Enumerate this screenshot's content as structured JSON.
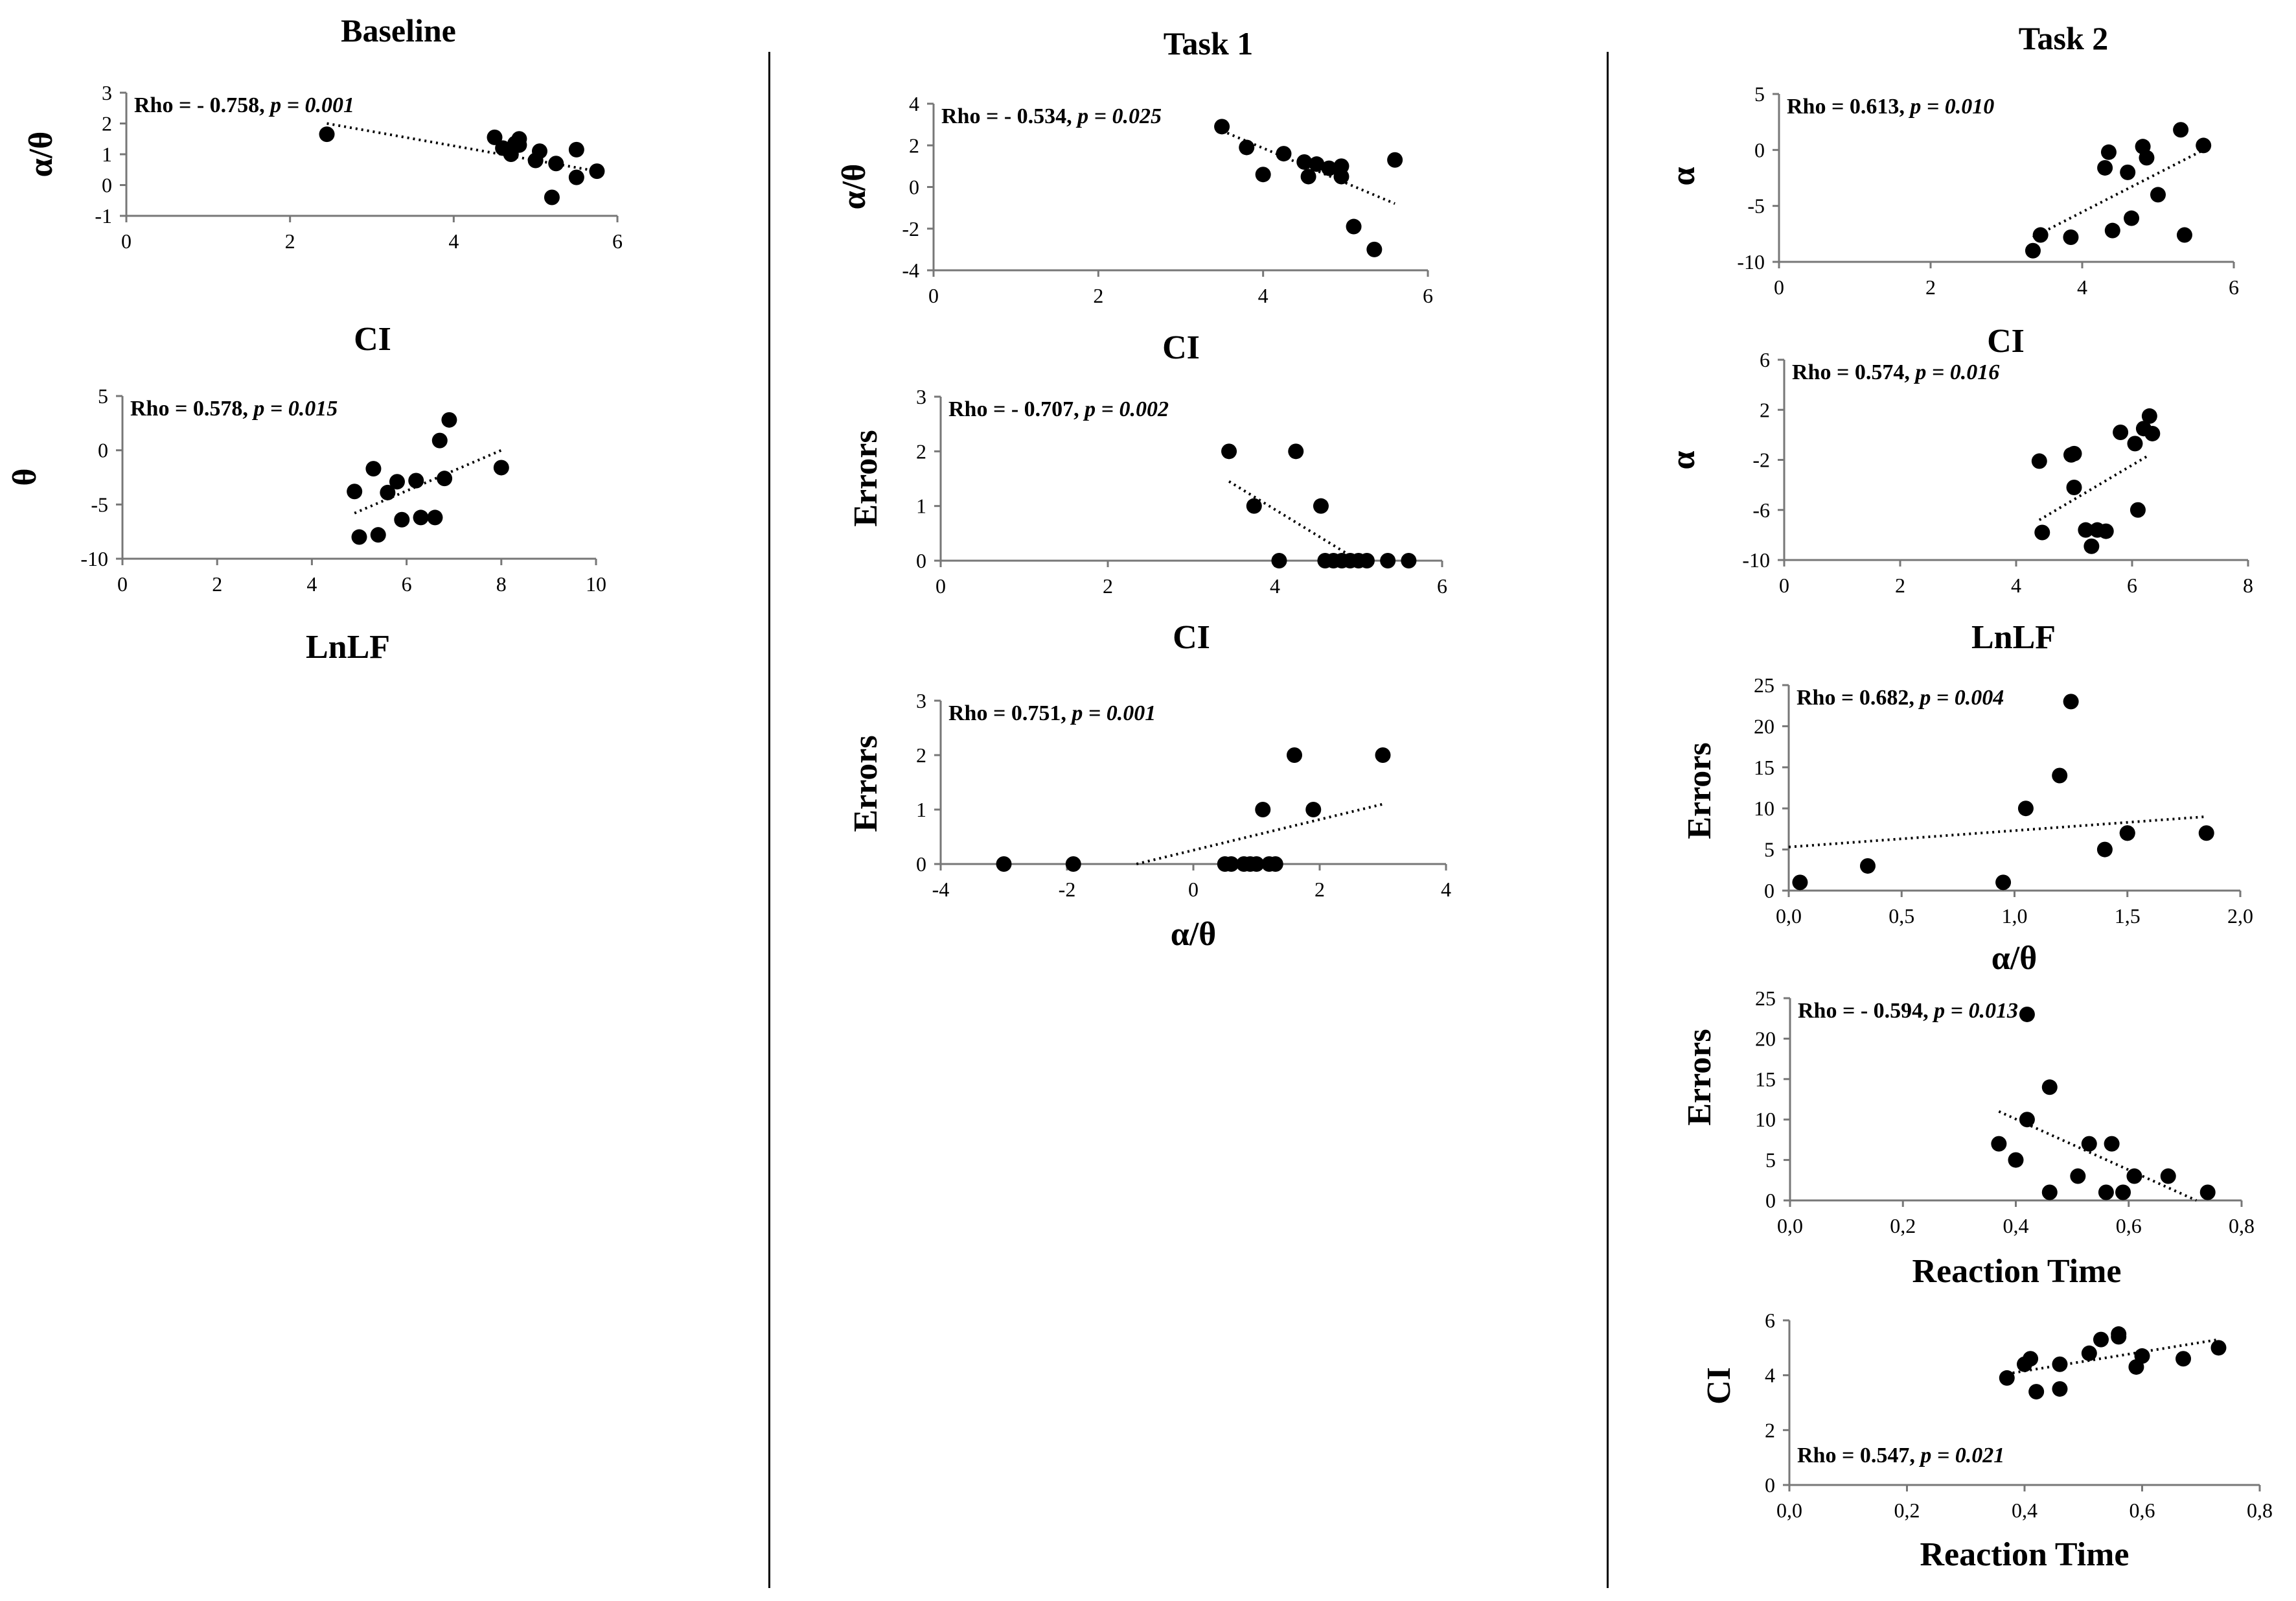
{
  "columns": [
    {
      "title": "Baseline"
    },
    {
      "title": "Task 1"
    },
    {
      "title": "Task 2"
    }
  ],
  "chart_data": [
    {
      "type": "scatter",
      "column": "Baseline",
      "ylabel": "α/θ",
      "xlabel": "CI",
      "annotation": {
        "rho": "Rho = - 0.758,",
        "p": "p = 0.001"
      },
      "xlim": [
        0,
        6
      ],
      "xticks": [
        0,
        2,
        4,
        6
      ],
      "ylim": [
        -1,
        3
      ],
      "yticks": [
        -1,
        0,
        1,
        2,
        3
      ],
      "x": [
        2.45,
        4.5,
        4.6,
        4.7,
        4.75,
        4.8,
        4.8,
        5.0,
        5.05,
        5.2,
        5.25,
        5.5,
        5.5,
        5.75
      ],
      "y": [
        1.65,
        1.55,
        1.2,
        1.0,
        1.35,
        1.5,
        1.3,
        0.8,
        1.1,
        -0.4,
        0.7,
        0.25,
        1.15,
        0.45
      ],
      "trend": [
        [
          2.45,
          2.0
        ],
        [
          5.75,
          0.45
        ]
      ]
    },
    {
      "type": "scatter",
      "column": "Baseline",
      "ylabel": "θ",
      "xlabel": "LnLF",
      "annotation": {
        "rho": "Rho = 0.578,",
        "p": "p = 0.015"
      },
      "xlim": [
        0,
        10
      ],
      "xticks": [
        0,
        2,
        4,
        6,
        8,
        10
      ],
      "ylim": [
        -10,
        5
      ],
      "yticks": [
        -10,
        -5,
        0,
        5
      ],
      "x": [
        4.9,
        5.0,
        5.3,
        5.4,
        5.6,
        5.8,
        5.9,
        6.2,
        6.3,
        6.6,
        6.7,
        6.8,
        6.9,
        8.0
      ],
      "y": [
        -3.8,
        -8.0,
        -1.7,
        -7.8,
        -3.9,
        -2.9,
        -6.4,
        -2.8,
        -6.2,
        -6.2,
        0.9,
        -2.6,
        2.8,
        -1.6
      ],
      "trend": [
        [
          4.9,
          -5.8
        ],
        [
          8.0,
          0.0
        ]
      ]
    },
    {
      "type": "scatter",
      "column": "Task 1",
      "ylabel": "α/θ",
      "xlabel": "CI",
      "annotation": {
        "rho": "Rho = - 0.534,",
        "p": "p = 0.025"
      },
      "xlim": [
        0,
        6
      ],
      "xticks": [
        0,
        2,
        4,
        6
      ],
      "ylim": [
        -4,
        4
      ],
      "yticks": [
        -4,
        -2,
        0,
        2,
        4
      ],
      "x": [
        3.5,
        3.8,
        4.0,
        4.25,
        4.5,
        4.55,
        4.65,
        4.8,
        4.95,
        4.95,
        5.1,
        5.35,
        5.6
      ],
      "y": [
        2.9,
        1.9,
        0.6,
        1.6,
        1.2,
        0.5,
        1.1,
        0.9,
        1.0,
        0.5,
        -1.9,
        -3.0,
        1.3
      ],
      "trend": [
        [
          3.5,
          2.7
        ],
        [
          5.6,
          -0.8
        ]
      ]
    },
    {
      "type": "scatter",
      "column": "Task 1",
      "ylabel": "Errors",
      "xlabel": "CI",
      "annotation": {
        "rho": "Rho = - 0.707,",
        "p": "p = 0.002"
      },
      "xlim": [
        0,
        6
      ],
      "xticks": [
        0,
        2,
        4,
        6
      ],
      "ylim": [
        0,
        3
      ],
      "yticks": [
        0,
        1,
        2,
        3
      ],
      "x": [
        3.45,
        3.75,
        4.05,
        4.25,
        4.55,
        4.6,
        4.7,
        4.8,
        4.9,
        5.0,
        5.1,
        5.35,
        5.6
      ],
      "y": [
        2,
        1,
        0,
        2,
        1,
        0,
        0,
        0,
        0,
        0,
        0,
        0,
        0
      ],
      "trend": [
        [
          3.45,
          1.45
        ],
        [
          5.0,
          0.0
        ]
      ]
    },
    {
      "type": "scatter",
      "column": "Task 1",
      "ylabel": "Errors",
      "xlabel": "α/θ",
      "annotation": {
        "rho": "Rho = 0.751,",
        "p": "p = 0.001"
      },
      "xlim": [
        -4,
        4
      ],
      "xticks": [
        -4,
        -2,
        0,
        2,
        4
      ],
      "ylim": [
        0,
        3
      ],
      "yticks": [
        0,
        1,
        2,
        3
      ],
      "x": [
        -3.0,
        -1.9,
        0.5,
        0.6,
        0.8,
        0.9,
        1.0,
        1.1,
        1.2,
        1.3,
        1.6,
        1.9,
        3.0
      ],
      "y": [
        0,
        0,
        0,
        0,
        0,
        0,
        0,
        1,
        0,
        0,
        2,
        1,
        2
      ],
      "trend": [
        [
          -0.9,
          0.0
        ],
        [
          3.0,
          1.1
        ]
      ]
    },
    {
      "type": "scatter",
      "column": "Task 2",
      "ylabel": "α",
      "xlabel": "CI",
      "annotation": {
        "rho": "Rho = 0.613,",
        "p": "p = 0.010"
      },
      "xlim": [
        0,
        6
      ],
      "xticks": [
        0,
        2,
        4,
        6
      ],
      "ylim": [
        -10,
        5
      ],
      "yticks": [
        -10,
        -5,
        0,
        5
      ],
      "x": [
        3.35,
        3.45,
        3.85,
        4.3,
        4.35,
        4.4,
        4.6,
        4.65,
        4.8,
        4.85,
        5.0,
        5.3,
        5.35,
        5.6
      ],
      "y": [
        -9.0,
        -7.6,
        -7.8,
        -1.6,
        -0.2,
        -7.2,
        -2.0,
        -6.1,
        0.3,
        -0.7,
        -4.0,
        1.8,
        -7.6,
        0.4
      ],
      "trend": [
        [
          3.35,
          -7.8
        ],
        [
          5.6,
          0.0
        ]
      ]
    },
    {
      "type": "scatter",
      "column": "Task 2",
      "ylabel": "α",
      "xlabel": "LnLF",
      "annotation": {
        "rho": "Rho = 0.574,",
        "p": "p = 0.016"
      },
      "xlim": [
        0,
        8
      ],
      "xticks": [
        0,
        2,
        4,
        6,
        8
      ],
      "ylim": [
        -10,
        6
      ],
      "yticks": [
        -10,
        -6,
        -2,
        2,
        6
      ],
      "x": [
        4.4,
        4.45,
        4.95,
        5.0,
        5.0,
        5.2,
        5.3,
        5.4,
        5.55,
        5.8,
        6.05,
        6.1,
        6.2,
        6.3,
        6.35
      ],
      "y": [
        -2.1,
        -7.8,
        -1.6,
        -4.2,
        -1.5,
        -7.6,
        -8.9,
        -7.6,
        -7.7,
        0.2,
        -0.7,
        -6.0,
        0.5,
        1.5,
        0.1
      ],
      "trend": [
        [
          4.4,
          -6.8
        ],
        [
          6.3,
          -1.6
        ]
      ]
    },
    {
      "type": "scatter",
      "column": "Task 2",
      "ylabel": "Errors",
      "xlabel": "α/θ",
      "annotation": {
        "rho": "Rho = 0.682,",
        "p": "p = 0.004"
      },
      "xlim": [
        0,
        2
      ],
      "xticks": [
        "0,0",
        "0,5",
        "1,0",
        "1,5",
        "2,0"
      ],
      "ylim": [
        0,
        25
      ],
      "yticks": [
        0,
        5,
        10,
        15,
        20,
        25
      ],
      "x": [
        0.05,
        0.35,
        0.95,
        1.05,
        1.2,
        1.25,
        1.4,
        1.5,
        1.5,
        1.85
      ],
      "y": [
        1,
        3,
        1,
        10,
        14,
        23,
        5,
        7,
        7,
        7
      ],
      "trend": [
        [
          0.0,
          5.3
        ],
        [
          1.85,
          9.0
        ]
      ]
    },
    {
      "type": "scatter",
      "column": "Task 2",
      "ylabel": "Errors",
      "xlabel": "Reaction Time",
      "annotation": {
        "rho": "Rho = - 0.594,",
        "p": "p = 0.013"
      },
      "xlim": [
        0,
        0.8
      ],
      "xticks": [
        "0,0",
        "0,2",
        "0,4",
        "0,6",
        "0,8"
      ],
      "ylim": [
        0,
        25
      ],
      "yticks": [
        0,
        5,
        10,
        15,
        20,
        25
      ],
      "x": [
        0.37,
        0.4,
        0.42,
        0.42,
        0.46,
        0.46,
        0.51,
        0.53,
        0.56,
        0.57,
        0.59,
        0.61,
        0.67,
        0.74
      ],
      "y": [
        7,
        5,
        10,
        23,
        14,
        1,
        3,
        7,
        1,
        7,
        1,
        3,
        3,
        1
      ],
      "trend": [
        [
          0.37,
          11.0
        ],
        [
          0.72,
          0.0
        ]
      ]
    },
    {
      "type": "scatter",
      "column": "Task 2",
      "ylabel": "CI",
      "xlabel": "Reaction Time",
      "annotation": {
        "rho": "Rho = 0.547,",
        "p": "p = 0.021"
      },
      "xlim": [
        0,
        0.8
      ],
      "xticks": [
        "0,0",
        "0,2",
        "0,4",
        "0,6",
        "0,8"
      ],
      "ylim": [
        0,
        6
      ],
      "yticks": [
        0,
        2,
        4,
        6
      ],
      "x": [
        0.37,
        0.4,
        0.41,
        0.42,
        0.46,
        0.46,
        0.51,
        0.53,
        0.56,
        0.56,
        0.59,
        0.6,
        0.67,
        0.73
      ],
      "y": [
        3.9,
        4.4,
        4.6,
        3.4,
        4.4,
        3.5,
        4.8,
        5.3,
        5.5,
        5.4,
        4.3,
        4.7,
        4.6,
        5.0
      ],
      "trend": [
        [
          0.37,
          4.05
        ],
        [
          0.73,
          5.3
        ]
      ]
    }
  ]
}
